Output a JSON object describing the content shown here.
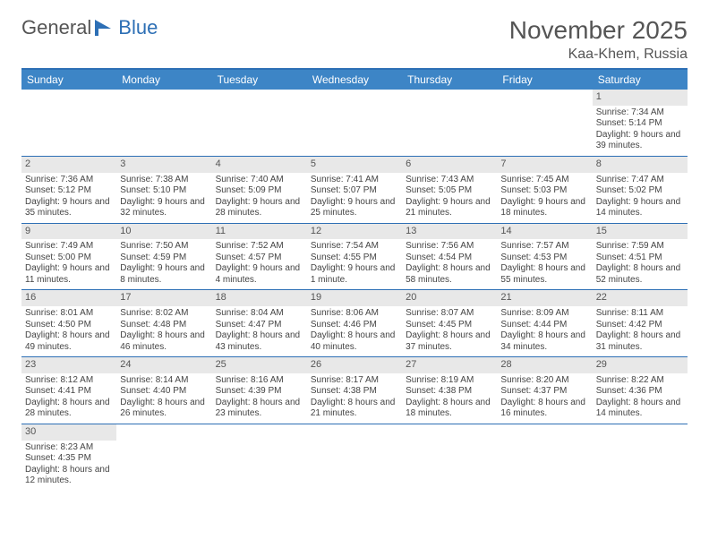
{
  "logo": {
    "left": "General",
    "right": "Blue"
  },
  "title": "November 2025",
  "location": "Kaa-Khem, Russia",
  "days_of_week": [
    "Sunday",
    "Monday",
    "Tuesday",
    "Wednesday",
    "Thursday",
    "Friday",
    "Saturday"
  ],
  "colors": {
    "header_bar": "#3d85c6",
    "rule": "#2d6fb5",
    "daynum_bg": "#e8e8e8",
    "text": "#444444",
    "title_text": "#555555",
    "background": "#ffffff"
  },
  "weeks": [
    [
      null,
      null,
      null,
      null,
      null,
      null,
      {
        "n": "1",
        "sunrise": "Sunrise: 7:34 AM",
        "sunset": "Sunset: 5:14 PM",
        "daylight": "Daylight: 9 hours and 39 minutes."
      }
    ],
    [
      {
        "n": "2",
        "sunrise": "Sunrise: 7:36 AM",
        "sunset": "Sunset: 5:12 PM",
        "daylight": "Daylight: 9 hours and 35 minutes."
      },
      {
        "n": "3",
        "sunrise": "Sunrise: 7:38 AM",
        "sunset": "Sunset: 5:10 PM",
        "daylight": "Daylight: 9 hours and 32 minutes."
      },
      {
        "n": "4",
        "sunrise": "Sunrise: 7:40 AM",
        "sunset": "Sunset: 5:09 PM",
        "daylight": "Daylight: 9 hours and 28 minutes."
      },
      {
        "n": "5",
        "sunrise": "Sunrise: 7:41 AM",
        "sunset": "Sunset: 5:07 PM",
        "daylight": "Daylight: 9 hours and 25 minutes."
      },
      {
        "n": "6",
        "sunrise": "Sunrise: 7:43 AM",
        "sunset": "Sunset: 5:05 PM",
        "daylight": "Daylight: 9 hours and 21 minutes."
      },
      {
        "n": "7",
        "sunrise": "Sunrise: 7:45 AM",
        "sunset": "Sunset: 5:03 PM",
        "daylight": "Daylight: 9 hours and 18 minutes."
      },
      {
        "n": "8",
        "sunrise": "Sunrise: 7:47 AM",
        "sunset": "Sunset: 5:02 PM",
        "daylight": "Daylight: 9 hours and 14 minutes."
      }
    ],
    [
      {
        "n": "9",
        "sunrise": "Sunrise: 7:49 AM",
        "sunset": "Sunset: 5:00 PM",
        "daylight": "Daylight: 9 hours and 11 minutes."
      },
      {
        "n": "10",
        "sunrise": "Sunrise: 7:50 AM",
        "sunset": "Sunset: 4:59 PM",
        "daylight": "Daylight: 9 hours and 8 minutes."
      },
      {
        "n": "11",
        "sunrise": "Sunrise: 7:52 AM",
        "sunset": "Sunset: 4:57 PM",
        "daylight": "Daylight: 9 hours and 4 minutes."
      },
      {
        "n": "12",
        "sunrise": "Sunrise: 7:54 AM",
        "sunset": "Sunset: 4:55 PM",
        "daylight": "Daylight: 9 hours and 1 minute."
      },
      {
        "n": "13",
        "sunrise": "Sunrise: 7:56 AM",
        "sunset": "Sunset: 4:54 PM",
        "daylight": "Daylight: 8 hours and 58 minutes."
      },
      {
        "n": "14",
        "sunrise": "Sunrise: 7:57 AM",
        "sunset": "Sunset: 4:53 PM",
        "daylight": "Daylight: 8 hours and 55 minutes."
      },
      {
        "n": "15",
        "sunrise": "Sunrise: 7:59 AM",
        "sunset": "Sunset: 4:51 PM",
        "daylight": "Daylight: 8 hours and 52 minutes."
      }
    ],
    [
      {
        "n": "16",
        "sunrise": "Sunrise: 8:01 AM",
        "sunset": "Sunset: 4:50 PM",
        "daylight": "Daylight: 8 hours and 49 minutes."
      },
      {
        "n": "17",
        "sunrise": "Sunrise: 8:02 AM",
        "sunset": "Sunset: 4:48 PM",
        "daylight": "Daylight: 8 hours and 46 minutes."
      },
      {
        "n": "18",
        "sunrise": "Sunrise: 8:04 AM",
        "sunset": "Sunset: 4:47 PM",
        "daylight": "Daylight: 8 hours and 43 minutes."
      },
      {
        "n": "19",
        "sunrise": "Sunrise: 8:06 AM",
        "sunset": "Sunset: 4:46 PM",
        "daylight": "Daylight: 8 hours and 40 minutes."
      },
      {
        "n": "20",
        "sunrise": "Sunrise: 8:07 AM",
        "sunset": "Sunset: 4:45 PM",
        "daylight": "Daylight: 8 hours and 37 minutes."
      },
      {
        "n": "21",
        "sunrise": "Sunrise: 8:09 AM",
        "sunset": "Sunset: 4:44 PM",
        "daylight": "Daylight: 8 hours and 34 minutes."
      },
      {
        "n": "22",
        "sunrise": "Sunrise: 8:11 AM",
        "sunset": "Sunset: 4:42 PM",
        "daylight": "Daylight: 8 hours and 31 minutes."
      }
    ],
    [
      {
        "n": "23",
        "sunrise": "Sunrise: 8:12 AM",
        "sunset": "Sunset: 4:41 PM",
        "daylight": "Daylight: 8 hours and 28 minutes."
      },
      {
        "n": "24",
        "sunrise": "Sunrise: 8:14 AM",
        "sunset": "Sunset: 4:40 PM",
        "daylight": "Daylight: 8 hours and 26 minutes."
      },
      {
        "n": "25",
        "sunrise": "Sunrise: 8:16 AM",
        "sunset": "Sunset: 4:39 PM",
        "daylight": "Daylight: 8 hours and 23 minutes."
      },
      {
        "n": "26",
        "sunrise": "Sunrise: 8:17 AM",
        "sunset": "Sunset: 4:38 PM",
        "daylight": "Daylight: 8 hours and 21 minutes."
      },
      {
        "n": "27",
        "sunrise": "Sunrise: 8:19 AM",
        "sunset": "Sunset: 4:38 PM",
        "daylight": "Daylight: 8 hours and 18 minutes."
      },
      {
        "n": "28",
        "sunrise": "Sunrise: 8:20 AM",
        "sunset": "Sunset: 4:37 PM",
        "daylight": "Daylight: 8 hours and 16 minutes."
      },
      {
        "n": "29",
        "sunrise": "Sunrise: 8:22 AM",
        "sunset": "Sunset: 4:36 PM",
        "daylight": "Daylight: 8 hours and 14 minutes."
      }
    ],
    [
      {
        "n": "30",
        "sunrise": "Sunrise: 8:23 AM",
        "sunset": "Sunset: 4:35 PM",
        "daylight": "Daylight: 8 hours and 12 minutes."
      },
      null,
      null,
      null,
      null,
      null,
      null
    ]
  ]
}
